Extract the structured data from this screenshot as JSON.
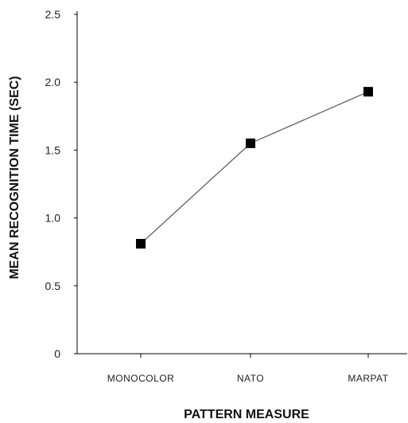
{
  "chart_data": {
    "type": "line",
    "categories": [
      "MONOCOLOR",
      "NATO",
      "MARPAT"
    ],
    "series": [
      {
        "values": [
          0.81,
          1.55,
          1.93
        ]
      }
    ],
    "xlabel": "PATTERN MEASURE",
    "ylabel": "MEAN RECOGNITION TIME (SEC)",
    "ylim": [
      0,
      2.5
    ],
    "yticks": [
      0,
      0.5,
      1.0,
      1.5,
      2.0,
      2.5
    ],
    "ytick_labels": [
      "0",
      "0.5",
      "1.0",
      "1.5",
      "2.0",
      "2.5"
    ],
    "grid": false,
    "legend": "none",
    "colors": {
      "line": "#555555",
      "marker": "#000000",
      "axis": "#000000"
    }
  }
}
